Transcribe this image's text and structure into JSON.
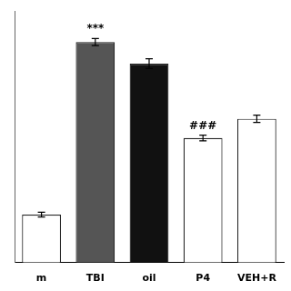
{
  "chart_data": {
    "type": "bar",
    "categories": [
      "m",
      "TBI",
      "oil",
      "P4",
      "VEH+R"
    ],
    "values": [
      20,
      92,
      83,
      52,
      60
    ],
    "errors": [
      1.0,
      1.5,
      2.0,
      1.2,
      1.5
    ],
    "colors": [
      "white",
      "#555555",
      "#111111",
      "white",
      "white"
    ],
    "annotations": [
      {
        "category": "TBI",
        "text": "***"
      },
      {
        "category": "P4",
        "text": "###"
      }
    ],
    "ylim": [
      0,
      105
    ],
    "grid": false,
    "tick_labels": "x"
  }
}
